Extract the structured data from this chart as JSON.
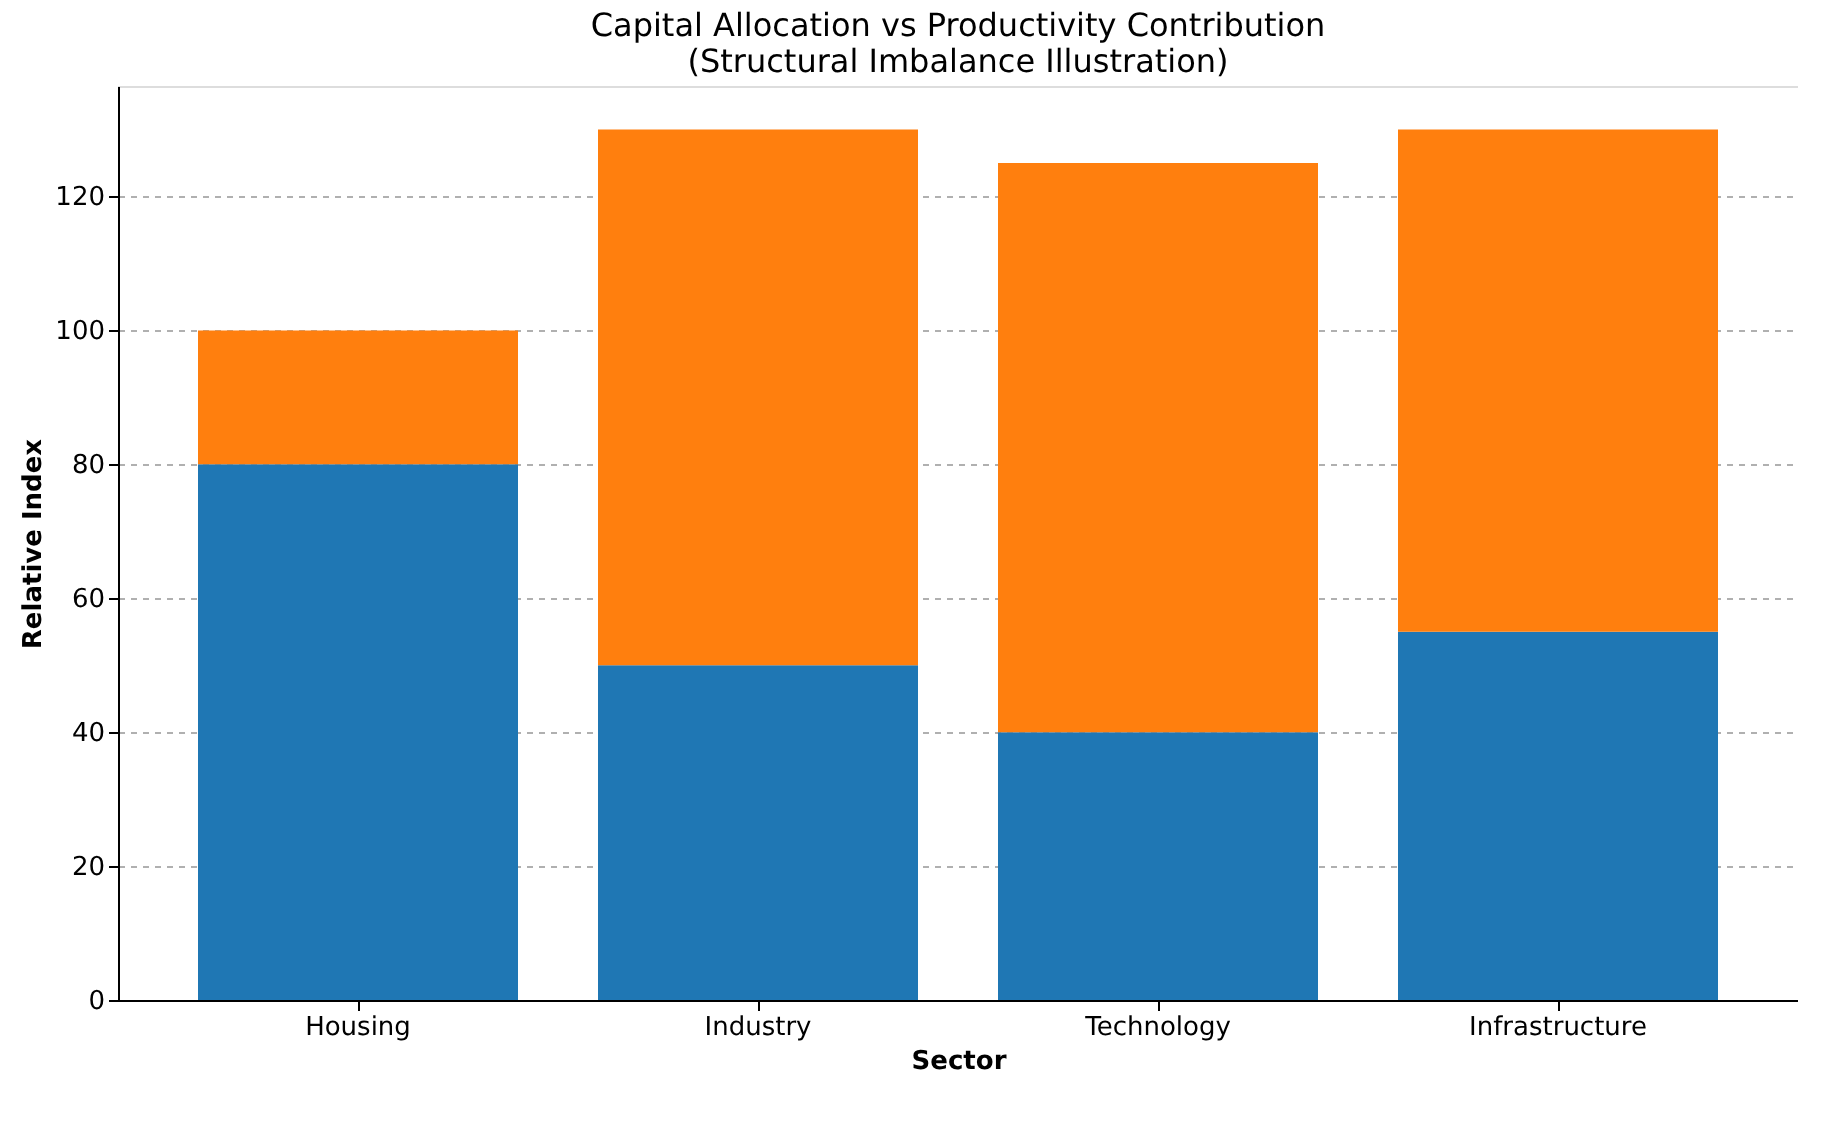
{
  "chart_data": {
    "type": "bar",
    "title": "Capital Allocation vs Productivity Contribution",
    "subtitle": "(Structural Imbalance Illustration)",
    "xlabel": "Sector",
    "ylabel": "Relative Index",
    "categories": [
      "Housing",
      "Industry",
      "Technology",
      "Infrastructure"
    ],
    "stacked": true,
    "series": [
      {
        "color": "#1f77b4",
        "values": [
          80,
          50,
          40,
          55
        ]
      },
      {
        "color": "#ff7f0e",
        "values": [
          20,
          80,
          85,
          75
        ]
      }
    ],
    "ylim": [
      0,
      136.5
    ],
    "yticks": [
      0,
      20,
      40,
      60,
      80,
      100,
      120
    ],
    "grid": "y"
  }
}
